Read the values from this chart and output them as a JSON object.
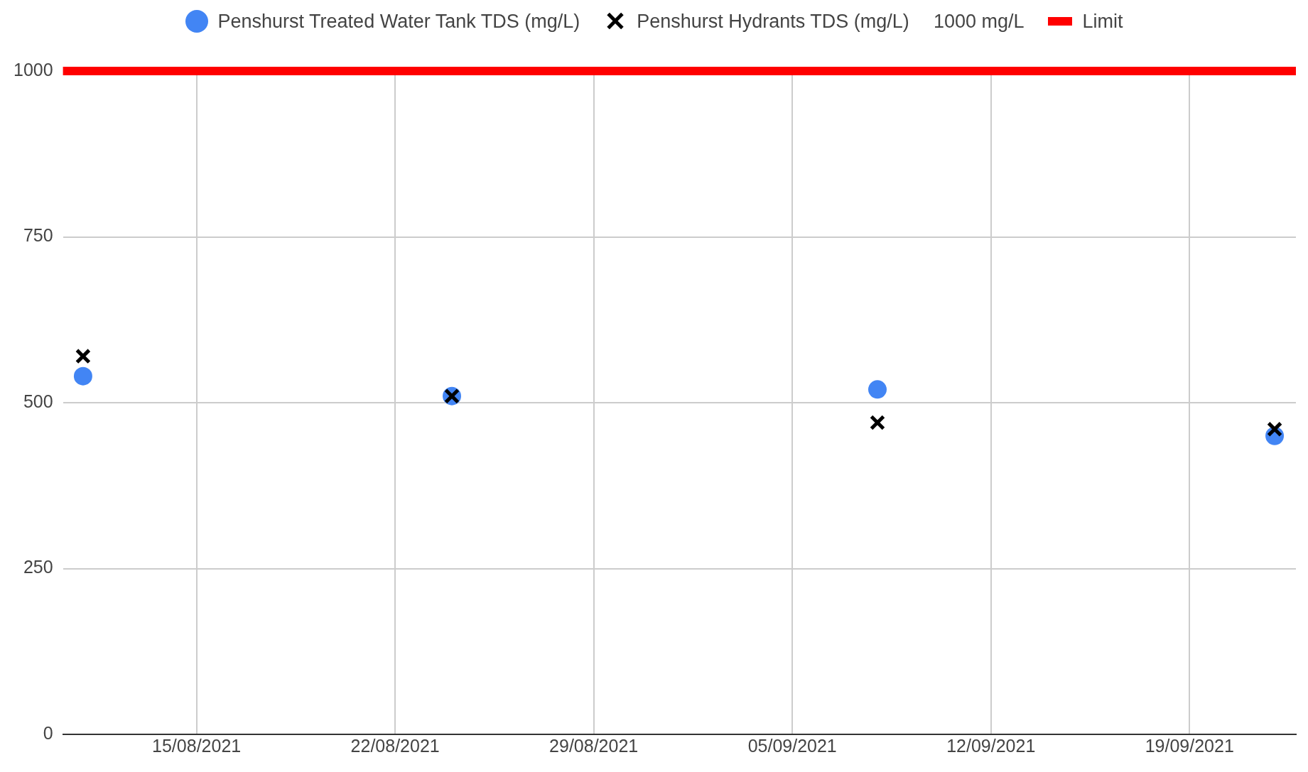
{
  "chart_data": {
    "type": "scatter",
    "x": [
      "2021-08-11",
      "2021-08-24",
      "2021-09-08",
      "2021-09-22"
    ],
    "series": [
      {
        "name": "Penshurst Treated Water Tank TDS (mg/L)",
        "color": "#4285f4",
        "marker": "circle",
        "values": [
          540,
          510,
          520,
          450
        ]
      },
      {
        "name": "Penshurst Hydrants TDS (mg/L)",
        "color": "#000000",
        "marker": "cross",
        "values": [
          570,
          510,
          470,
          460
        ]
      }
    ],
    "annotations": [
      "1000 mg/L"
    ],
    "ref_lines": [
      {
        "axis": "y",
        "value": 1000,
        "label": "Limit",
        "color": "#ff0000"
      }
    ],
    "xlim": [
      "2021-08-10T07:00",
      "2021-09-22T18:00"
    ],
    "xticks": [
      {
        "value": "2021-08-15",
        "label": "15/08/2021"
      },
      {
        "value": "2021-08-22",
        "label": "22/08/2021"
      },
      {
        "value": "2021-08-29",
        "label": "29/08/2021"
      },
      {
        "value": "2021-09-05",
        "label": "05/09/2021"
      },
      {
        "value": "2021-09-12",
        "label": "12/09/2021"
      },
      {
        "value": "2021-09-19",
        "label": "19/09/2021"
      }
    ],
    "ylim": [
      0,
      1000
    ],
    "yticks": [
      0,
      250,
      500,
      750,
      1000
    ],
    "grid": true,
    "legend": "top"
  }
}
